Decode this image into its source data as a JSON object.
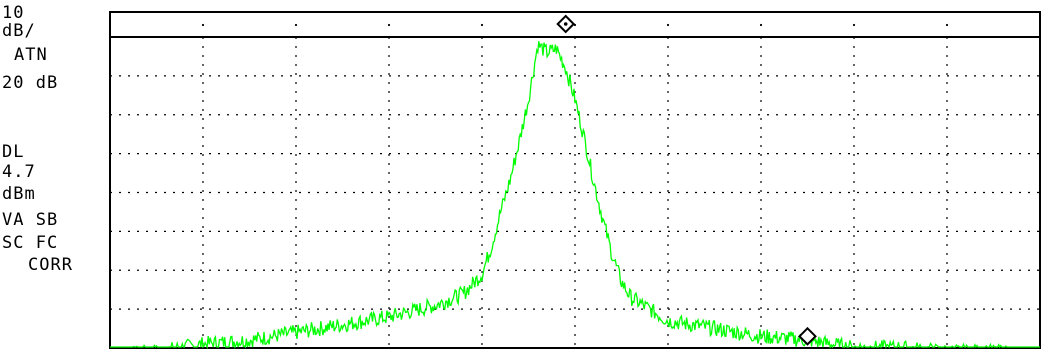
{
  "instrument": {
    "scale_line1": "10",
    "scale_line2": "dB/",
    "atten_label": "ATN",
    "atten_value": "20 dB",
    "display_line_label": "DL",
    "display_line_value": "4.7",
    "display_line_unit": "dBm",
    "flags_line1": "VA SB",
    "flags_line2": "SC FC",
    "flags_line3": "CORR"
  },
  "chart_data": {
    "type": "line",
    "title": "",
    "xlabel": "",
    "ylabel": "",
    "grid": true,
    "grid_divisions": {
      "x": 10,
      "y": 8
    },
    "y_scale": "10 dB/div",
    "ylim": [
      -80,
      0
    ],
    "xlim": [
      0,
      10
    ],
    "series": [
      {
        "color": "#00ff00",
        "x": [
          0.0,
          0.5,
          1.0,
          1.5,
          2.0,
          2.5,
          3.0,
          3.5,
          3.8,
          4.0,
          4.1,
          4.2,
          4.3,
          4.4,
          4.5,
          4.6,
          4.7,
          4.8,
          4.9,
          5.0,
          5.1,
          5.2,
          5.3,
          5.4,
          5.5,
          5.6,
          5.8,
          6.0,
          6.5,
          7.0,
          7.5,
          8.0,
          8.5,
          9.0,
          9.5,
          10.0
        ],
        "y": [
          -82,
          -81,
          -79,
          -78,
          -76,
          -74,
          -72,
          -69,
          -66,
          -61,
          -54,
          -45,
          -37,
          -27,
          -16,
          -2,
          -4,
          -3,
          -8,
          -16,
          -26,
          -37,
          -47,
          -56,
          -63,
          -67,
          -70,
          -73,
          -75,
          -77,
          -78,
          -80,
          -80,
          -81,
          -81,
          -82
        ]
      }
    ],
    "markers": [
      {
        "symbol": "diamond",
        "x": 4.9,
        "y": 0
      },
      {
        "symbol": "diamond",
        "x": 7.5,
        "y": -77
      }
    ]
  }
}
